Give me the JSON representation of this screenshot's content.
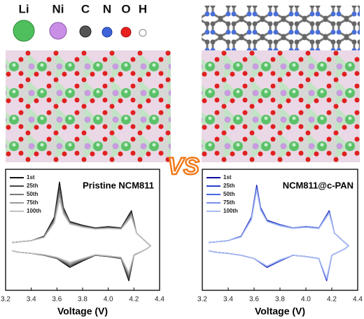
{
  "atoms": [
    "Li",
    "Ni",
    "C",
    "N",
    "O",
    "H"
  ],
  "vs": "VS",
  "chart_data": [
    {
      "type": "line",
      "title": "Pristine NCM811",
      "x_label": "Voltage (V)",
      "xlim": [
        3.2,
        4.4
      ],
      "xticks": [
        3.2,
        3.4,
        3.6,
        3.8,
        {
          "value": 4,
          "label": "4.0"
        },
        4.2,
        4.4
      ],
      "ylim": [
        -0.7,
        1.2
      ],
      "x": [
        3.25,
        3.4,
        3.5,
        3.58,
        3.62,
        3.65,
        3.7,
        3.8,
        3.9,
        4.0,
        4.1,
        4.15,
        4.18,
        4.22,
        4.3,
        4.33,
        4.3,
        4.2,
        4.16,
        4.1,
        4.0,
        3.9,
        3.8,
        3.7,
        3.6,
        3.5,
        3.4,
        3.3,
        3.25
      ],
      "series": [
        {
          "name": "1st",
          "color": "#111111",
          "values": [
            0.05,
            0.08,
            0.15,
            0.45,
            1.0,
            0.6,
            0.38,
            0.32,
            0.28,
            0.3,
            0.28,
            0.45,
            0.55,
            0.2,
            0.05,
            0.0,
            -0.05,
            -0.15,
            -0.55,
            -0.2,
            -0.17,
            -0.15,
            -0.24,
            -0.34,
            -0.2,
            -0.15,
            -0.12,
            -0.1,
            -0.08
          ]
        },
        {
          "name": "25th",
          "color": "#444444",
          "values": [
            0.05,
            0.08,
            0.14,
            0.42,
            0.92,
            0.58,
            0.37,
            0.31,
            0.27,
            0.29,
            0.27,
            0.43,
            0.52,
            0.2,
            0.05,
            0.0,
            -0.05,
            -0.15,
            -0.52,
            -0.2,
            -0.17,
            -0.15,
            -0.23,
            -0.32,
            -0.2,
            -0.15,
            -0.12,
            -0.1,
            -0.08
          ]
        },
        {
          "name": "50th",
          "color": "#777777",
          "values": [
            0.05,
            0.08,
            0.14,
            0.4,
            0.85,
            0.55,
            0.36,
            0.3,
            0.27,
            0.28,
            0.27,
            0.42,
            0.5,
            0.2,
            0.05,
            0.0,
            -0.05,
            -0.15,
            -0.48,
            -0.19,
            -0.16,
            -0.15,
            -0.22,
            -0.3,
            -0.19,
            -0.15,
            -0.12,
            -0.1,
            -0.08
          ]
        },
        {
          "name": "75th",
          "color": "#9a9a9a",
          "values": [
            0.05,
            0.08,
            0.13,
            0.38,
            0.8,
            0.53,
            0.35,
            0.3,
            0.26,
            0.28,
            0.26,
            0.4,
            0.48,
            0.2,
            0.05,
            0.0,
            -0.05,
            -0.15,
            -0.45,
            -0.19,
            -0.16,
            -0.14,
            -0.21,
            -0.28,
            -0.19,
            -0.14,
            -0.12,
            -0.1,
            -0.08
          ]
        },
        {
          "name": "100th",
          "color": "#c0c0c0",
          "values": [
            0.05,
            0.08,
            0.13,
            0.36,
            0.72,
            0.5,
            0.34,
            0.29,
            0.26,
            0.27,
            0.26,
            0.38,
            0.45,
            0.2,
            0.05,
            0.0,
            -0.05,
            -0.14,
            -0.42,
            -0.18,
            -0.16,
            -0.14,
            -0.2,
            -0.26,
            -0.18,
            -0.14,
            -0.12,
            -0.1,
            -0.08
          ]
        }
      ]
    },
    {
      "type": "line",
      "title": "NCM811@c-PAN",
      "x_label": "Voltage (V)",
      "xlim": [
        3.2,
        4.4
      ],
      "xticks": [
        3.2,
        3.4,
        3.6,
        3.8,
        {
          "value": 4,
          "label": "4.0"
        },
        4.2,
        4.4
      ],
      "ylim": [
        -0.7,
        1.2
      ],
      "x": [
        3.25,
        3.4,
        3.5,
        3.58,
        3.62,
        3.65,
        3.7,
        3.8,
        3.9,
        4.0,
        4.1,
        4.15,
        4.18,
        4.22,
        4.3,
        4.33,
        4.3,
        4.2,
        4.16,
        4.1,
        4.0,
        3.9,
        3.8,
        3.7,
        3.6,
        3.5,
        3.4,
        3.3,
        3.25
      ],
      "series": [
        {
          "name": "1st",
          "color": "#0a0aa0",
          "values": [
            0.05,
            0.08,
            0.15,
            0.45,
            0.95,
            0.6,
            0.4,
            0.33,
            0.28,
            0.3,
            0.28,
            0.45,
            0.55,
            0.2,
            0.05,
            0.0,
            -0.05,
            -0.15,
            -0.55,
            -0.2,
            -0.17,
            -0.15,
            -0.24,
            -0.34,
            -0.2,
            -0.15,
            -0.12,
            -0.1,
            -0.08
          ]
        },
        {
          "name": "25th",
          "color": "#2a3cd0",
          "values": [
            0.05,
            0.08,
            0.15,
            0.44,
            0.93,
            0.59,
            0.39,
            0.33,
            0.28,
            0.3,
            0.28,
            0.44,
            0.54,
            0.2,
            0.05,
            0.0,
            -0.05,
            -0.15,
            -0.54,
            -0.2,
            -0.17,
            -0.15,
            -0.24,
            -0.33,
            -0.2,
            -0.15,
            -0.12,
            -0.1,
            -0.08
          ]
        },
        {
          "name": "50th",
          "color": "#4a64e0",
          "values": [
            0.05,
            0.08,
            0.14,
            0.43,
            0.91,
            0.58,
            0.39,
            0.32,
            0.28,
            0.3,
            0.28,
            0.44,
            0.53,
            0.2,
            0.05,
            0.0,
            -0.05,
            -0.15,
            -0.53,
            -0.2,
            -0.17,
            -0.15,
            -0.23,
            -0.33,
            -0.2,
            -0.15,
            -0.12,
            -0.1,
            -0.08
          ]
        },
        {
          "name": "75th",
          "color": "#7590ea",
          "values": [
            0.05,
            0.08,
            0.14,
            0.42,
            0.89,
            0.57,
            0.38,
            0.32,
            0.28,
            0.29,
            0.27,
            0.43,
            0.52,
            0.2,
            0.05,
            0.0,
            -0.05,
            -0.15,
            -0.52,
            -0.2,
            -0.17,
            -0.15,
            -0.23,
            -0.32,
            -0.2,
            -0.15,
            -0.12,
            -0.1,
            -0.08
          ]
        },
        {
          "name": "100th",
          "color": "#a9bcf2",
          "values": [
            0.05,
            0.08,
            0.14,
            0.41,
            0.87,
            0.56,
            0.38,
            0.31,
            0.27,
            0.29,
            0.27,
            0.42,
            0.51,
            0.2,
            0.05,
            0.0,
            -0.05,
            -0.15,
            -0.51,
            -0.2,
            -0.17,
            -0.15,
            -0.22,
            -0.32,
            -0.2,
            -0.15,
            -0.12,
            -0.1,
            -0.08
          ]
        }
      ]
    }
  ]
}
